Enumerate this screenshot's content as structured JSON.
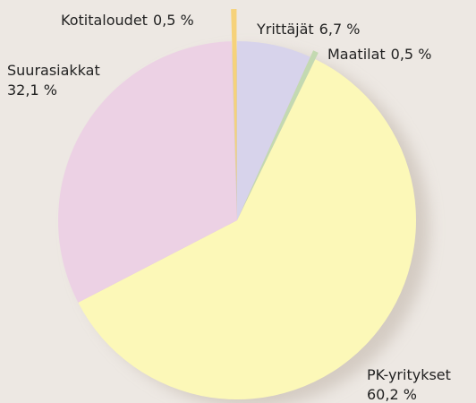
{
  "chart_data": {
    "type": "pie",
    "categories": [
      "Yrittäjät",
      "Maatilat",
      "PK-yritykset",
      "Suurasiakkat",
      "Kotitaloudet"
    ],
    "values": [
      6.7,
      0.5,
      60.2,
      32.1,
      0.5
    ],
    "value_labels": [
      "6,7 %",
      "0,5 %",
      "60,2 %",
      "32,1 %",
      "0,5 %"
    ],
    "colors": [
      "#d7d3eb",
      "#c3d9b1",
      "#fcf8b8",
      "#ecd1e4",
      "#f6d27a"
    ]
  }
}
